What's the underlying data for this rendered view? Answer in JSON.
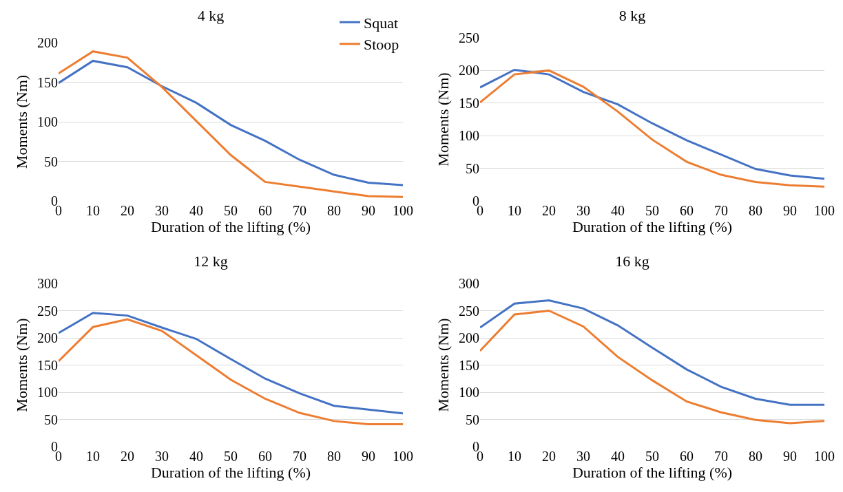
{
  "chart_data": [
    {
      "type": "line",
      "title": "4 kg",
      "xlabel": "Duration of the lifting (%)",
      "ylabel": "Moments (Nm)",
      "x": [
        0,
        10,
        20,
        30,
        40,
        50,
        60,
        70,
        80,
        90,
        100
      ],
      "xlim": [
        0,
        100
      ],
      "xticks": [
        0,
        10,
        20,
        30,
        40,
        50,
        60,
        70,
        80,
        90,
        100
      ],
      "ylim": [
        0,
        200
      ],
      "yticks": [
        0,
        50,
        100,
        150,
        200
      ],
      "grid": "y",
      "legend": "top right",
      "series": [
        {
          "name": "Squat",
          "color": "#4472c4",
          "values": [
            149,
            177,
            169,
            145,
            124,
            96,
            76,
            52,
            33,
            23,
            20
          ]
        },
        {
          "name": "Stoop",
          "color": "#ed7d31",
          "values": [
            161,
            189,
            181,
            144,
            101,
            58,
            24,
            18,
            12,
            6,
            5
          ]
        }
      ]
    },
    {
      "type": "line",
      "title": "8 kg",
      "xlabel": "Duration of the lifting (%)",
      "ylabel": "Moments (Nm)",
      "x": [
        0,
        10,
        20,
        30,
        40,
        50,
        60,
        70,
        80,
        90,
        100
      ],
      "xlim": [
        0,
        100
      ],
      "xticks": [
        0,
        10,
        20,
        30,
        40,
        50,
        60,
        70,
        80,
        90,
        100
      ],
      "ylim": [
        0,
        250
      ],
      "yticks": [
        0,
        50,
        100,
        150,
        200,
        250
      ],
      "grid": "y",
      "series": [
        {
          "color": "#4472c4",
          "values": [
            174,
            201,
            194,
            167,
            148,
            119,
            93,
            71,
            49,
            39,
            34
          ]
        },
        {
          "color": "#ed7d31",
          "values": [
            151,
            194,
            200,
            175,
            137,
            94,
            60,
            40,
            29,
            24,
            22
          ]
        }
      ]
    },
    {
      "type": "line",
      "title": "12 kg",
      "xlabel": "Duration of the lifting (%)",
      "ylabel": "Moments (Nm)",
      "x": [
        0,
        10,
        20,
        30,
        40,
        50,
        60,
        70,
        80,
        90,
        100
      ],
      "xlim": [
        0,
        100
      ],
      "xticks": [
        0,
        10,
        20,
        30,
        40,
        50,
        60,
        70,
        80,
        90,
        100
      ],
      "ylim": [
        0,
        300
      ],
      "yticks": [
        0,
        50,
        100,
        150,
        200,
        250,
        300
      ],
      "grid": "y",
      "series": [
        {
          "color": "#4472c4",
          "values": [
            209,
            246,
            241,
            219,
            198,
            161,
            125,
            98,
            75,
            68,
            61
          ]
        },
        {
          "color": "#ed7d31",
          "values": [
            157,
            220,
            234,
            213,
            168,
            123,
            88,
            62,
            47,
            41,
            41
          ]
        }
      ]
    },
    {
      "type": "line",
      "title": "16 kg",
      "xlabel": "Duration of the lifting (%)",
      "ylabel": "Moments (Nm)",
      "x": [
        0,
        10,
        20,
        30,
        40,
        50,
        60,
        70,
        80,
        90,
        100
      ],
      "xlim": [
        0,
        100
      ],
      "xticks": [
        0,
        10,
        20,
        30,
        40,
        50,
        60,
        70,
        80,
        90,
        100
      ],
      "ylim": [
        0,
        300
      ],
      "yticks": [
        0,
        50,
        100,
        150,
        200,
        250,
        300
      ],
      "grid": "y",
      "series": [
        {
          "color": "#4472c4",
          "values": [
            219,
            263,
            269,
            254,
            223,
            182,
            142,
            110,
            88,
            77,
            77
          ]
        },
        {
          "color": "#ed7d31",
          "values": [
            176,
            243,
            250,
            221,
            165,
            122,
            83,
            63,
            49,
            43,
            47
          ]
        }
      ]
    }
  ]
}
